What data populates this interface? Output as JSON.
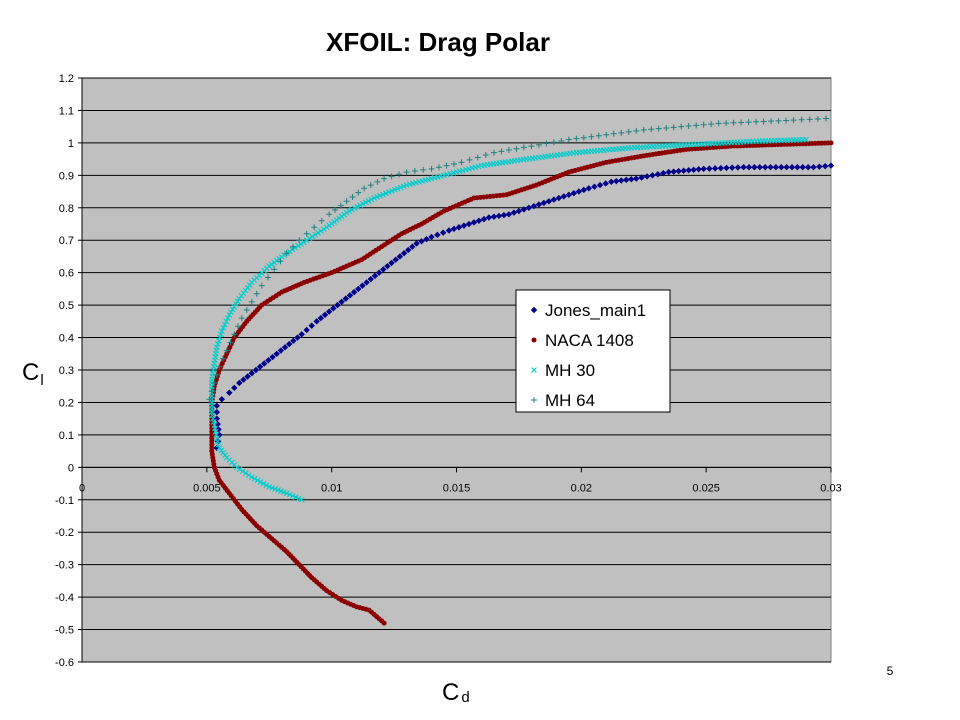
{
  "page_number": "5",
  "chart_data": {
    "type": "scatter",
    "title": "XFOIL: Drag Polar",
    "xlabel": {
      "main": "C",
      "sub": "d"
    },
    "ylabel": {
      "main": "C",
      "sub": "l"
    },
    "xlim": [
      0,
      0.03
    ],
    "ylim": [
      -0.6,
      1.2
    ],
    "xticks": [
      "0",
      "0.005",
      "0.01",
      "0.015",
      "0.02",
      "0.025",
      "0.03"
    ],
    "xtick_values": [
      0,
      0.005,
      0.01,
      0.015,
      0.02,
      0.025,
      0.03
    ],
    "yticks": [
      "1.2",
      "1.1",
      "1",
      "0.9",
      "0.8",
      "0.7",
      "0.6",
      "0.5",
      "0.4",
      "0.3",
      "0.2",
      "0.1",
      "0",
      "-0.1",
      "-0.2",
      "-0.3",
      "-0.4",
      "-0.5",
      "-0.6"
    ],
    "ytick_values": [
      1.2,
      1.1,
      1.0,
      0.9,
      0.8,
      0.7,
      0.6,
      0.5,
      0.4,
      0.3,
      0.2,
      0.1,
      0,
      -0.1,
      -0.2,
      -0.3,
      -0.4,
      -0.5,
      -0.6
    ],
    "grid": "horizontal",
    "plot_background": "#c0c0c0",
    "legend_position": "center-right",
    "series": [
      {
        "name": "Jones_main1",
        "marker": "diamond",
        "color": "#00008b",
        "points": [
          [
            0.0054,
            0.06
          ],
          [
            0.0055,
            0.1
          ],
          [
            0.0054,
            0.15
          ],
          [
            0.0054,
            0.19
          ],
          [
            0.0056,
            0.21
          ],
          [
            0.0059,
            0.23
          ],
          [
            0.0063,
            0.26
          ],
          [
            0.0068,
            0.29
          ],
          [
            0.0073,
            0.32
          ],
          [
            0.0078,
            0.35
          ],
          [
            0.0083,
            0.38
          ],
          [
            0.0088,
            0.41
          ],
          [
            0.0094,
            0.45
          ],
          [
            0.0099,
            0.48
          ],
          [
            0.0104,
            0.51
          ],
          [
            0.0109,
            0.54
          ],
          [
            0.0114,
            0.57
          ],
          [
            0.0119,
            0.6
          ],
          [
            0.0124,
            0.63
          ],
          [
            0.0129,
            0.66
          ],
          [
            0.0134,
            0.69
          ],
          [
            0.014,
            0.71
          ],
          [
            0.0147,
            0.73
          ],
          [
            0.0155,
            0.75
          ],
          [
            0.0163,
            0.77
          ],
          [
            0.0171,
            0.78
          ],
          [
            0.0179,
            0.8
          ],
          [
            0.0187,
            0.82
          ],
          [
            0.0195,
            0.84
          ],
          [
            0.0203,
            0.86
          ],
          [
            0.0212,
            0.88
          ],
          [
            0.0222,
            0.89
          ],
          [
            0.0235,
            0.91
          ],
          [
            0.0249,
            0.92
          ],
          [
            0.0265,
            0.925
          ],
          [
            0.0293,
            0.925
          ],
          [
            0.03,
            0.93
          ]
        ]
      },
      {
        "name": "NACA 1408",
        "marker": "circle",
        "color": "#8b0000",
        "points": [
          [
            0.0121,
            -0.48
          ],
          [
            0.0118,
            -0.46
          ],
          [
            0.0115,
            -0.44
          ],
          [
            0.011,
            -0.43
          ],
          [
            0.0104,
            -0.41
          ],
          [
            0.0098,
            -0.38
          ],
          [
            0.0092,
            -0.34
          ],
          [
            0.0087,
            -0.3
          ],
          [
            0.0082,
            -0.26
          ],
          [
            0.0076,
            -0.22
          ],
          [
            0.007,
            -0.18
          ],
          [
            0.0064,
            -0.13
          ],
          [
            0.0059,
            -0.08
          ],
          [
            0.0055,
            -0.04
          ],
          [
            0.0053,
            0.0
          ],
          [
            0.0052,
            0.05
          ],
          [
            0.0052,
            0.1
          ],
          [
            0.0052,
            0.15
          ],
          [
            0.0052,
            0.2
          ],
          [
            0.0053,
            0.25
          ],
          [
            0.0055,
            0.3
          ],
          [
            0.0058,
            0.35
          ],
          [
            0.0061,
            0.4
          ],
          [
            0.0066,
            0.45
          ],
          [
            0.0072,
            0.5
          ],
          [
            0.008,
            0.54
          ],
          [
            0.0089,
            0.57
          ],
          [
            0.01,
            0.6
          ],
          [
            0.0112,
            0.64
          ],
          [
            0.012,
            0.68
          ],
          [
            0.0128,
            0.72
          ],
          [
            0.0136,
            0.75
          ],
          [
            0.0145,
            0.79
          ],
          [
            0.0157,
            0.83
          ],
          [
            0.017,
            0.84
          ],
          [
            0.0182,
            0.87
          ],
          [
            0.0195,
            0.91
          ],
          [
            0.021,
            0.94
          ],
          [
            0.0225,
            0.96
          ],
          [
            0.0242,
            0.98
          ],
          [
            0.026,
            0.99
          ],
          [
            0.028,
            0.995
          ],
          [
            0.03,
            1.0
          ]
        ]
      },
      {
        "name": "MH 30",
        "marker": "x",
        "color": "#00cccc",
        "points": [
          [
            0.0088,
            -0.1
          ],
          [
            0.0082,
            -0.08
          ],
          [
            0.0075,
            -0.06
          ],
          [
            0.0068,
            -0.03
          ],
          [
            0.0062,
            0.0
          ],
          [
            0.0058,
            0.03
          ],
          [
            0.0055,
            0.06
          ],
          [
            0.0054,
            0.09
          ],
          [
            0.0053,
            0.13
          ],
          [
            0.0052,
            0.17
          ],
          [
            0.0052,
            0.22
          ],
          [
            0.0052,
            0.27
          ],
          [
            0.0053,
            0.32
          ],
          [
            0.0054,
            0.37
          ],
          [
            0.0056,
            0.42
          ],
          [
            0.0059,
            0.47
          ],
          [
            0.0063,
            0.52
          ],
          [
            0.0068,
            0.57
          ],
          [
            0.0075,
            0.62
          ],
          [
            0.0082,
            0.66
          ],
          [
            0.009,
            0.7
          ],
          [
            0.0098,
            0.74
          ],
          [
            0.0107,
            0.79
          ],
          [
            0.0117,
            0.83
          ],
          [
            0.013,
            0.87
          ],
          [
            0.0145,
            0.9
          ],
          [
            0.016,
            0.93
          ],
          [
            0.0178,
            0.95
          ],
          [
            0.0198,
            0.97
          ],
          [
            0.022,
            0.985
          ],
          [
            0.0245,
            0.995
          ],
          [
            0.027,
            1.005
          ],
          [
            0.029,
            1.01
          ]
        ]
      },
      {
        "name": "MH 64",
        "marker": "plus",
        "color": "#208080",
        "points": [
          [
            0.0051,
            0.21
          ],
          [
            0.0053,
            0.26
          ],
          [
            0.0055,
            0.31
          ],
          [
            0.0058,
            0.36
          ],
          [
            0.0061,
            0.41
          ],
          [
            0.0064,
            0.46
          ],
          [
            0.0068,
            0.51
          ],
          [
            0.0072,
            0.56
          ],
          [
            0.0077,
            0.61
          ],
          [
            0.0082,
            0.66
          ],
          [
            0.0087,
            0.7
          ],
          [
            0.0093,
            0.74
          ],
          [
            0.0099,
            0.78
          ],
          [
            0.0106,
            0.82
          ],
          [
            0.0113,
            0.86
          ],
          [
            0.0121,
            0.89
          ],
          [
            0.013,
            0.91
          ],
          [
            0.014,
            0.92
          ],
          [
            0.0152,
            0.94
          ],
          [
            0.0165,
            0.97
          ],
          [
            0.018,
            0.99
          ],
          [
            0.0195,
            1.01
          ],
          [
            0.021,
            1.025
          ],
          [
            0.0225,
            1.04
          ],
          [
            0.024,
            1.05
          ],
          [
            0.0255,
            1.06
          ],
          [
            0.027,
            1.065
          ],
          [
            0.0285,
            1.07
          ],
          [
            0.0298,
            1.075
          ]
        ]
      }
    ]
  }
}
